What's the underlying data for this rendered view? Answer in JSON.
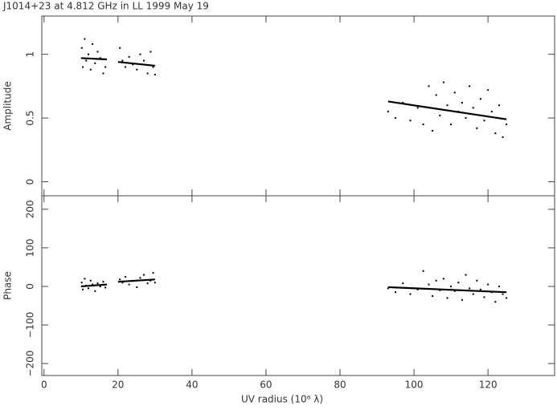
{
  "title": "J1014+23 at 4.812 GHz in LL  1999 May 19",
  "chart_data": [
    {
      "type": "scatter",
      "y_label": "Amplitude",
      "x": [
        10.2,
        10.5,
        11,
        11.4,
        12,
        12.6,
        13.1,
        13.8,
        14.5,
        15.2,
        16,
        16.6,
        20.5,
        21.2,
        22,
        23,
        24,
        25.1,
        26,
        27,
        28,
        28.8,
        29.5,
        30,
        93,
        95,
        97,
        99,
        101,
        102.5,
        104,
        105,
        106,
        107,
        108,
        109,
        110,
        111,
        112,
        113,
        114,
        115,
        116,
        117,
        118,
        119,
        120,
        121,
        122,
        123,
        124,
        125
      ],
      "values": [
        1.05,
        0.9,
        1.12,
        0.95,
        1.0,
        0.88,
        1.08,
        0.93,
        1.02,
        0.97,
        0.85,
        0.9,
        1.05,
        0.95,
        0.9,
        0.98,
        0.92,
        0.88,
        1.0,
        0.95,
        0.85,
        1.02,
        0.9,
        0.84,
        0.55,
        0.5,
        0.62,
        0.48,
        0.58,
        0.45,
        0.75,
        0.4,
        0.68,
        0.52,
        0.78,
        0.6,
        0.45,
        0.7,
        0.55,
        0.62,
        0.5,
        0.75,
        0.58,
        0.42,
        0.65,
        0.48,
        0.72,
        0.55,
        0.38,
        0.6,
        0.35,
        0.45
      ],
      "model_x": [
        10,
        17,
        18.5,
        20,
        30,
        60,
        93,
        125
      ],
      "model_values": [
        0.97,
        0.96,
        null,
        0.94,
        0.91,
        null,
        0.63,
        0.49
      ],
      "color": "#000000",
      "xlim": [
        -0.6,
        138
      ],
      "xticks": [
        0,
        20,
        40,
        60,
        80,
        100,
        120
      ],
      "ylim": [
        -0.11,
        1.3
      ],
      "yticks": [
        0,
        0.5,
        1
      ]
    },
    {
      "type": "scatter",
      "y_label": "Phase",
      "x_label": "UV radius  (10⁶ λ)",
      "x": [
        10.2,
        10.5,
        11,
        11.4,
        12,
        12.6,
        13.1,
        13.8,
        14.5,
        15.2,
        16,
        16.6,
        20.5,
        21.2,
        22,
        23,
        24,
        25.1,
        26,
        27,
        28,
        28.8,
        29.5,
        30,
        93,
        95,
        97,
        99,
        101,
        102.5,
        104,
        105,
        106,
        107,
        108,
        109,
        110,
        111,
        112,
        113,
        114,
        115,
        116,
        117,
        118,
        119,
        120,
        121,
        122,
        123,
        124,
        125
      ],
      "values": [
        10,
        -8,
        20,
        2,
        -5,
        15,
        5,
        -12,
        8,
        0,
        12,
        -3,
        18,
        10,
        25,
        5,
        14,
        -2,
        22,
        30,
        8,
        15,
        35,
        10,
        -5,
        -15,
        8,
        -20,
        -8,
        40,
        5,
        -25,
        15,
        -10,
        20,
        -30,
        0,
        -12,
        10,
        -35,
        30,
        -5,
        -20,
        15,
        -8,
        -28,
        5,
        -15,
        -40,
        0,
        -20,
        -30
      ],
      "model_x": [
        10,
        17,
        18.5,
        20,
        30,
        60,
        93,
        125
      ],
      "model_values": [
        0,
        5,
        null,
        12,
        18,
        null,
        -2,
        -15
      ],
      "color": "#000000",
      "xlim": [
        -0.6,
        138
      ],
      "xticks": [
        0,
        20,
        40,
        60,
        80,
        100,
        120
      ],
      "ylim": [
        -231,
        235
      ],
      "yticks": [
        {
          "value": -200,
          "label": "−200"
        },
        {
          "value": -100,
          "label": "−100"
        },
        0,
        100,
        200
      ]
    }
  ]
}
